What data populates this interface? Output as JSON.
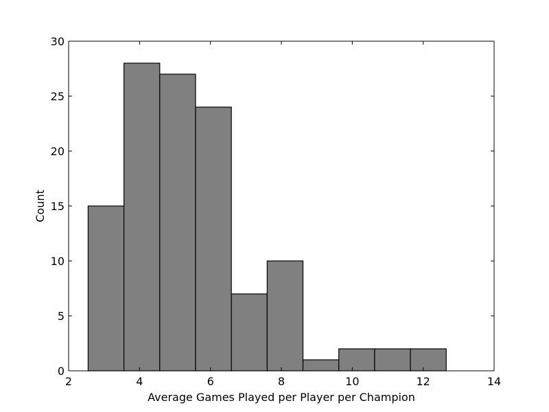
{
  "chart_data": {
    "type": "bar",
    "title": "",
    "xlabel": "Average Games Played per Player per Champion",
    "ylabel": "Count",
    "xlim": [
      2,
      14
    ],
    "ylim": [
      0,
      30
    ],
    "xticks": [
      2,
      4,
      6,
      8,
      10,
      12,
      14
    ],
    "yticks": [
      0,
      5,
      10,
      15,
      20,
      25,
      30
    ],
    "grid": false,
    "bins": [
      {
        "x0": 2.55,
        "x1": 3.56,
        "count": 15
      },
      {
        "x0": 3.56,
        "x1": 4.57,
        "count": 28
      },
      {
        "x0": 4.57,
        "x1": 5.58,
        "count": 27
      },
      {
        "x0": 5.58,
        "x1": 6.59,
        "count": 24
      },
      {
        "x0": 6.59,
        "x1": 7.6,
        "count": 7
      },
      {
        "x0": 7.6,
        "x1": 8.61,
        "count": 10
      },
      {
        "x0": 8.61,
        "x1": 9.62,
        "count": 1
      },
      {
        "x0": 9.62,
        "x1": 10.63,
        "count": 2
      },
      {
        "x0": 10.63,
        "x1": 11.64,
        "count": 2
      },
      {
        "x0": 11.64,
        "x1": 12.65,
        "count": 2
      }
    ],
    "colors": {
      "bar_fill": "#808080",
      "bar_stroke": "#000000",
      "axes": "#000000",
      "background": "#ffffff"
    }
  }
}
